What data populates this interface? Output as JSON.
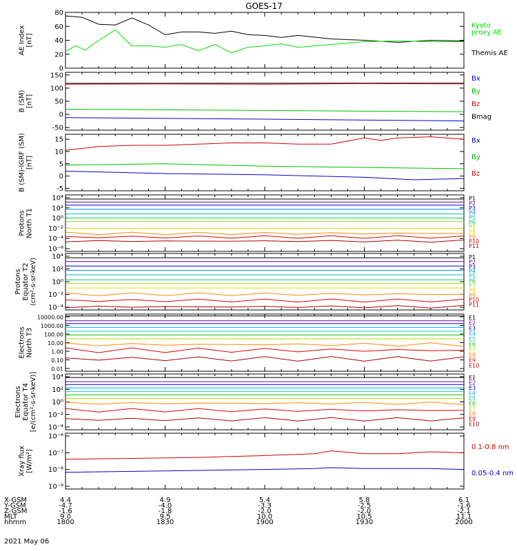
{
  "title": "GOES-17",
  "date": "2021 May 06",
  "x_axis": {
    "row_labels": [
      "X-GSM",
      "Y-GSM",
      "Z-GSM",
      "MLT",
      "hhmm"
    ],
    "columns": [
      {
        "x_gsm": "4.4",
        "y_gsm": "-4.7",
        "z_gsm": "-1.6",
        "mlt": "9.0",
        "hhmm": "1800"
      },
      {
        "x_gsm": "4.9",
        "y_gsm": "-4.0",
        "z_gsm": "-1.8",
        "mlt": "9.5",
        "hhmm": "1830"
      },
      {
        "x_gsm": "5.4",
        "y_gsm": "-3.3",
        "z_gsm": "-2.0",
        "mlt": "10.0",
        "hhmm": "1900"
      },
      {
        "x_gsm": "5.8",
        "y_gsm": "-2.5",
        "z_gsm": "-2.0",
        "mlt": "10.5",
        "hhmm": "1930"
      },
      {
        "x_gsm": "6.1",
        "y_gsm": "-1.6",
        "z_gsm": "-2.1",
        "mlt": "11.1",
        "hhmm": "2000"
      }
    ]
  },
  "chart_data": [
    {
      "type": "line",
      "id": "ae",
      "ylabel_lines": [
        "AE Index",
        "[nT]"
      ],
      "ylim": [
        0,
        80
      ],
      "yticks": [
        "0",
        "20",
        "40",
        "60",
        "80"
      ],
      "legend": [
        {
          "text": "Kyoto",
          "color": "#00dd00"
        },
        {
          "text": "proxy AE",
          "color": "#00dd00"
        },
        {
          "text": "Themis AE",
          "color": "#000000"
        }
      ],
      "series": [
        {
          "name": "Themis AE",
          "color": "#000000",
          "x": [
            0,
            5,
            10,
            15,
            20,
            25,
            30,
            35,
            40,
            45,
            50,
            55,
            60,
            65,
            70,
            80,
            90,
            100,
            110,
            120
          ],
          "y": [
            75,
            73,
            63,
            62,
            72,
            62,
            48,
            52,
            52,
            50,
            53,
            48,
            47,
            44,
            47,
            42,
            40,
            37,
            40,
            39
          ]
        },
        {
          "name": "Kyoto proxy AE",
          "color": "#00dd00",
          "x": [
            0,
            3,
            6,
            10,
            15,
            20,
            25,
            30,
            35,
            40,
            45,
            50,
            55,
            60,
            65,
            70,
            80,
            90,
            100,
            110,
            120
          ],
          "y": [
            24,
            32,
            26,
            40,
            55,
            32,
            32,
            30,
            34,
            25,
            34,
            22,
            30,
            32,
            35,
            30,
            34,
            38,
            39,
            38,
            38
          ]
        }
      ]
    },
    {
      "type": "line",
      "id": "bsm",
      "ylabel_lines": [
        "B (SM)",
        "[nT]"
      ],
      "ylim": [
        -60,
        160
      ],
      "yticks": [
        "-50",
        "0",
        "50",
        "100",
        "150"
      ],
      "legend": [
        {
          "text": "Bx",
          "color": "#0000cc"
        },
        {
          "text": "By",
          "color": "#00bb00"
        },
        {
          "text": "Bz",
          "color": "#cc0000"
        },
        {
          "text": "Bmag",
          "color": "#000000"
        }
      ],
      "series": [
        {
          "name": "Bmag",
          "color": "#000000",
          "x": [
            0,
            120
          ],
          "y": [
            118,
            119
          ]
        },
        {
          "name": "Bz",
          "color": "#cc0000",
          "x": [
            0,
            30,
            60,
            90,
            120
          ],
          "y": [
            115,
            116,
            115,
            117,
            116
          ]
        },
        {
          "name": "By",
          "color": "#00bb00",
          "x": [
            0,
            60,
            120
          ],
          "y": [
            20,
            15,
            10
          ]
        },
        {
          "name": "Bx",
          "color": "#0000cc",
          "x": [
            0,
            60,
            120
          ],
          "y": [
            -12,
            -18,
            -25
          ]
        }
      ]
    },
    {
      "type": "line",
      "id": "bdiff",
      "ylabel_lines": [
        "B (SM)-IGRF (SM)",
        "[nT]"
      ],
      "ylim": [
        -6,
        17
      ],
      "yticks": [
        "-5",
        "0",
        "5",
        "10",
        "15"
      ],
      "legend": [
        {
          "text": "Bx",
          "color": "#0000cc"
        },
        {
          "text": "By",
          "color": "#00bb00"
        },
        {
          "text": "Bz",
          "color": "#cc0000"
        }
      ],
      "series": [
        {
          "name": "Bz",
          "color": "#cc0000",
          "x": [
            0,
            10,
            20,
            30,
            40,
            50,
            60,
            70,
            80,
            90,
            95,
            100,
            110,
            120
          ],
          "y": [
            10.5,
            12,
            12.5,
            12.5,
            13,
            13.5,
            13.5,
            13,
            13,
            15.5,
            14.5,
            15.5,
            16,
            15
          ]
        },
        {
          "name": "By",
          "color": "#00bb00",
          "x": [
            0,
            30,
            60,
            90,
            120
          ],
          "y": [
            4.5,
            5,
            4,
            3.5,
            3
          ]
        },
        {
          "name": "Bx",
          "color": "#0000cc",
          "x": [
            0,
            30,
            60,
            90,
            105,
            120
          ],
          "y": [
            2,
            1,
            0.5,
            -0.5,
            -1.5,
            -1
          ]
        }
      ]
    },
    {
      "type": "line",
      "id": "protons_t1",
      "ylog": true,
      "ylabel_lines": [
        "Protons",
        "North T1"
      ],
      "ylim_exp": [
        -7,
        4
      ],
      "yticks": [
        "10⁴",
        "10²",
        "10⁰",
        "10⁻²",
        "10⁻⁴",
        "10⁻⁶"
      ],
      "channels": [
        {
          "name": "P1",
          "color": "#000000"
        },
        {
          "name": "P2",
          "color": "#6600aa"
        },
        {
          "name": "P3",
          "color": "#0000cc"
        },
        {
          "name": "P4",
          "color": "#0088ff"
        },
        {
          "name": "P5",
          "color": "#00bbbb"
        },
        {
          "name": "P6",
          "color": "#00cc66"
        },
        {
          "name": "P7",
          "color": "#99dd00"
        },
        {
          "name": "P8",
          "color": "#dddd00"
        },
        {
          "name": "P9",
          "color": "#ff8800"
        },
        {
          "name": "P10",
          "color": "#dd0000"
        },
        {
          "name": "P11",
          "color": "#aa0000"
        }
      ],
      "levels_exp": [
        3.2,
        2.6,
        2.0,
        1.2,
        0.3,
        -0.5,
        -1.2,
        -2.5,
        -3.5,
        -4.2,
        -5
      ]
    },
    {
      "type": "line",
      "id": "protons_t2",
      "ylog": true,
      "ylabel_lines": [
        "Protons",
        "Equator T2",
        "(cm²-s-sr-keV)"
      ],
      "ylim_exp": [
        -5,
        4
      ],
      "yticks": [
        "10⁴",
        "10²",
        "10⁰",
        "10⁻²",
        "10⁻⁴"
      ],
      "channels": [
        {
          "name": "P1",
          "color": "#000000"
        },
        {
          "name": "P2",
          "color": "#6600aa"
        },
        {
          "name": "P3",
          "color": "#0000cc"
        },
        {
          "name": "P4",
          "color": "#0088ff"
        },
        {
          "name": "P5",
          "color": "#00bbbb"
        },
        {
          "name": "P6",
          "color": "#00cc66"
        },
        {
          "name": "P7",
          "color": "#99dd00"
        },
        {
          "name": "P8",
          "color": "#dddd00"
        },
        {
          "name": "P9",
          "color": "#ff8800"
        },
        {
          "name": "P10",
          "color": "#dd0000"
        },
        {
          "name": "P11",
          "color": "#aa0000"
        }
      ],
      "levels_exp": [
        3.3,
        2.7,
        2.0,
        1.3,
        0.6,
        -0.2,
        -0.8,
        -1.5,
        -2.5,
        -3.5,
        -4.5
      ]
    },
    {
      "type": "line",
      "id": "electrons_t3",
      "ylog": true,
      "ylabel_lines": [
        "Electrons",
        "North T3"
      ],
      "ylim_exp": [
        -2,
        4
      ],
      "yticks": [
        "10000.00",
        "1000.00",
        "100.00",
        "10.00",
        "1.00",
        "0.10",
        "0.01"
      ],
      "channels": [
        {
          "name": "E1",
          "color": "#000000"
        },
        {
          "name": "E2",
          "color": "#6600aa"
        },
        {
          "name": "E3",
          "color": "#0000cc"
        },
        {
          "name": "E4",
          "color": "#00aaff"
        },
        {
          "name": "E5",
          "color": "#00cccc"
        },
        {
          "name": "E6",
          "color": "#00cc00"
        },
        {
          "name": "E7",
          "color": "#aadd00"
        },
        {
          "name": "E8",
          "color": "#ff8800"
        },
        {
          "name": "E9",
          "color": "#dd0000"
        },
        {
          "name": "E10",
          "color": "#aa0000"
        }
      ],
      "levels_exp": [
        3.8,
        3.3,
        3.0,
        2.6,
        2.2,
        1.8,
        1.4,
        0.8,
        0.2,
        -0.7
      ]
    },
    {
      "type": "line",
      "id": "electrons_t4",
      "ylog": true,
      "ylabel_lines": [
        "Electrons",
        "Equator T4",
        "[e/(cm²-s-sr-keV)]"
      ],
      "ylim_exp": [
        -4,
        4
      ],
      "yticks": [
        "10⁴",
        "10²",
        "10⁰",
        "10⁻²",
        "10⁻⁴"
      ],
      "channels": [
        {
          "name": "E1",
          "color": "#000000"
        },
        {
          "name": "E2",
          "color": "#6600aa"
        },
        {
          "name": "E3",
          "color": "#0000cc"
        },
        {
          "name": "E4",
          "color": "#00aaff"
        },
        {
          "name": "E5",
          "color": "#00cccc"
        },
        {
          "name": "E6",
          "color": "#00cc00"
        },
        {
          "name": "E7",
          "color": "#aadd00"
        },
        {
          "name": "E8",
          "color": "#ff8800"
        },
        {
          "name": "E9",
          "color": "#dd0000"
        },
        {
          "name": "E10",
          "color": "#aa0000"
        }
      ],
      "levels_exp": [
        3.5,
        2.9,
        2.5,
        2.0,
        1.5,
        1.0,
        0.5,
        -0.2,
        -1.2,
        -2.5
      ]
    },
    {
      "type": "line",
      "id": "xray",
      "ylog": true,
      "ylabel_lines": [
        "Xray flux",
        "[W/m²]"
      ],
      "ylim_exp": [
        -9,
        -6
      ],
      "yticks": [
        "10⁻⁶",
        "10⁻⁷",
        "10⁻⁸",
        "10⁻⁹"
      ],
      "legend": [
        {
          "text": "0.1-0.8 nm",
          "color": "#cc0000"
        },
        {
          "text": "0.05-0.4 nm",
          "color": "#0000cc"
        }
      ],
      "series": [
        {
          "name": "0.1-0.8 nm",
          "color": "#cc0000",
          "x": [
            0,
            20,
            40,
            60,
            75,
            80,
            90,
            100,
            110,
            120
          ],
          "exp": [
            -7.4,
            -7.35,
            -7.3,
            -7.2,
            -7.1,
            -6.95,
            -7.1,
            -7.1,
            -7.0,
            -7.05
          ]
        },
        {
          "name": "0.05-0.4 nm",
          "color": "#0000cc",
          "x": [
            0,
            20,
            40,
            60,
            75,
            80,
            90,
            100,
            110,
            120
          ],
          "exp": [
            -8.1,
            -8.05,
            -8.0,
            -7.95,
            -7.9,
            -7.85,
            -7.9,
            -7.9,
            -7.9,
            -7.95
          ]
        }
      ]
    }
  ]
}
